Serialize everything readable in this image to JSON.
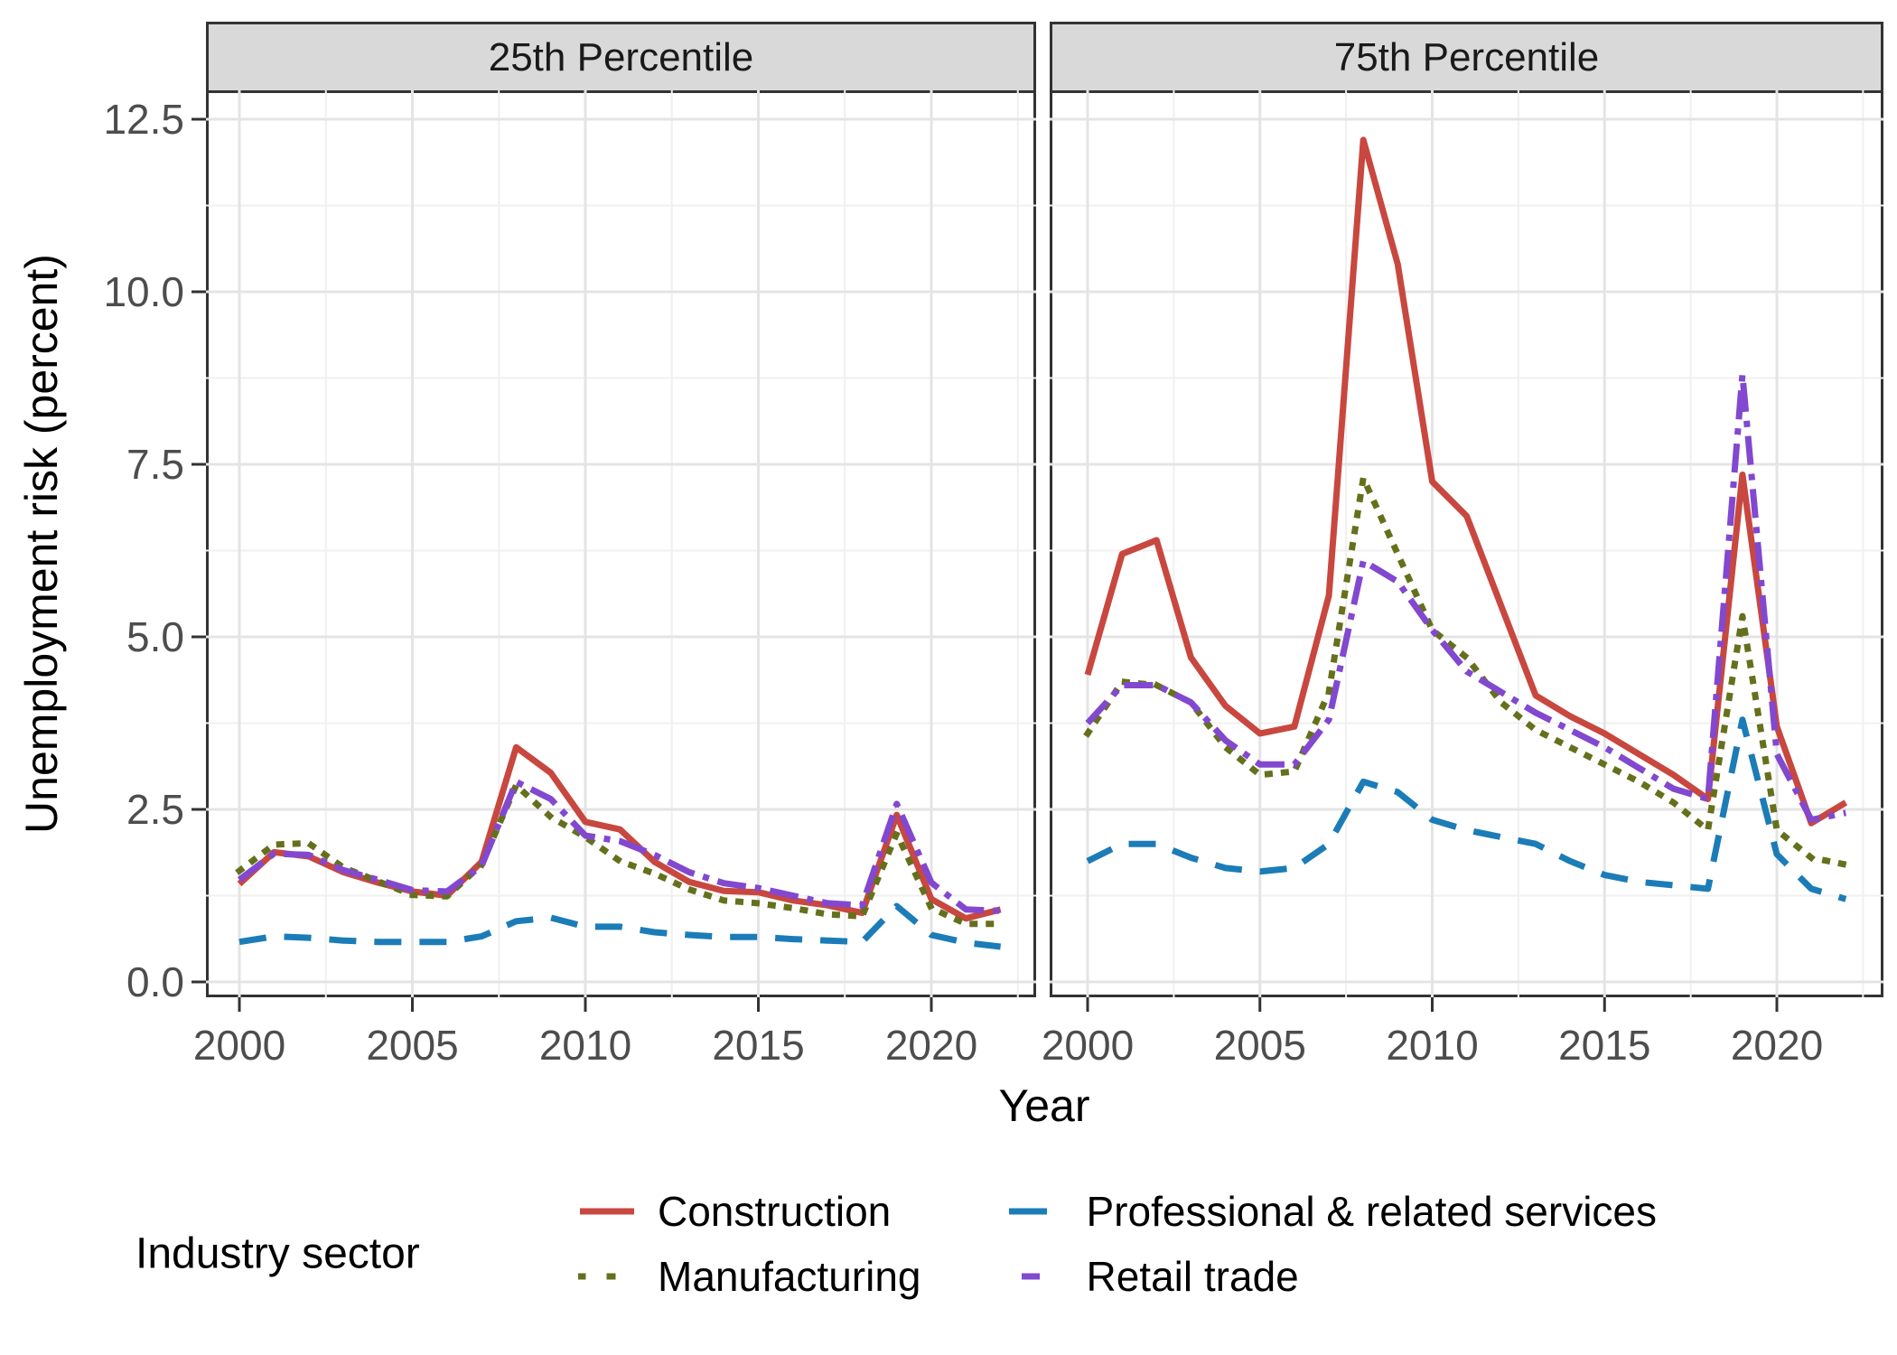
{
  "figure": {
    "y_axis_title": "Unemployment risk (percent)",
    "x_axis_title": "Year"
  },
  "legend": {
    "title": "Industry sector",
    "entries": [
      {
        "label": "Construction",
        "series": "construction"
      },
      {
        "label": "Professional & related services",
        "series": "professional"
      },
      {
        "label": "Manufacturing",
        "series": "manufacturing"
      },
      {
        "label": "Retail trade",
        "series": "retail"
      }
    ]
  },
  "chart_data": {
    "type": "line",
    "title": "",
    "xlabel": "Year",
    "ylabel": "Unemployment risk (percent)",
    "grid": "major+minor",
    "legend_position": "bottom",
    "ylim": [
      0,
      13
    ],
    "x": [
      2000,
      2001,
      2002,
      2003,
      2004,
      2005,
      2006,
      2007,
      2008,
      2009,
      2010,
      2011,
      2012,
      2013,
      2014,
      2015,
      2016,
      2017,
      2018,
      2019,
      2020,
      2021,
      2022
    ],
    "x_ticks": [
      2000,
      2005,
      2010,
      2015,
      2020
    ],
    "x_tick_labels": [
      "2000",
      "2005",
      "2010",
      "2015",
      "2020"
    ],
    "y_ticks": [
      0,
      2.5,
      5,
      7.5,
      10,
      12.5
    ],
    "y_tick_labels": [
      "0.0",
      "2.5",
      "5.0",
      "7.5",
      "10.0",
      "12.5"
    ],
    "series_styles": {
      "construction": {
        "label": "Construction",
        "color": "#C8473F",
        "dash": "solid"
      },
      "manufacturing": {
        "label": "Manufacturing",
        "color": "#66701C",
        "dash": "dotted"
      },
      "professional": {
        "label": "Professional & related services",
        "color": "#1B7CB8",
        "dash": "dashed"
      },
      "retail": {
        "label": "Retail trade",
        "color": "#8248D0",
        "dash": "dashdot"
      }
    },
    "facets": [
      {
        "label": "25th Percentile",
        "series": {
          "construction": [
            1.42,
            1.88,
            1.82,
            1.59,
            1.44,
            1.31,
            1.25,
            1.74,
            3.4,
            3.03,
            2.32,
            2.21,
            1.74,
            1.45,
            1.32,
            1.3,
            1.18,
            1.11,
            1.0,
            2.42,
            1.2,
            0.92,
            1.05
          ],
          "manufacturing": [
            1.61,
            1.99,
            2.01,
            1.66,
            1.46,
            1.26,
            1.24,
            1.7,
            2.85,
            2.39,
            2.1,
            1.75,
            1.57,
            1.34,
            1.18,
            1.14,
            1.07,
            0.98,
            0.95,
            2.15,
            1.07,
            0.84,
            0.84
          ],
          "professional": [
            0.58,
            0.66,
            0.64,
            0.6,
            0.58,
            0.58,
            0.58,
            0.66,
            0.88,
            0.93,
            0.8,
            0.8,
            0.72,
            0.68,
            0.65,
            0.65,
            0.62,
            0.6,
            0.58,
            1.1,
            0.68,
            0.57,
            0.51
          ],
          "retail": [
            1.48,
            1.86,
            1.84,
            1.62,
            1.48,
            1.33,
            1.31,
            1.68,
            2.9,
            2.65,
            2.12,
            2.04,
            1.84,
            1.59,
            1.43,
            1.36,
            1.25,
            1.14,
            1.11,
            2.58,
            1.44,
            1.05,
            1.03
          ]
        }
      },
      {
        "label": "75th Percentile",
        "series": {
          "construction": [
            4.45,
            6.2,
            6.4,
            4.7,
            4.0,
            3.6,
            3.7,
            5.6,
            12.2,
            10.4,
            7.25,
            6.75,
            5.45,
            4.15,
            3.85,
            3.6,
            3.3,
            3.0,
            2.65,
            7.35,
            3.7,
            2.3,
            2.6
          ],
          "manufacturing": [
            3.6,
            4.35,
            4.3,
            4.05,
            3.4,
            3.0,
            3.05,
            4.2,
            7.3,
            6.2,
            5.1,
            4.7,
            4.05,
            3.65,
            3.4,
            3.15,
            2.9,
            2.6,
            2.2,
            5.3,
            2.2,
            1.8,
            1.7
          ],
          "professional": [
            1.75,
            2.0,
            2.0,
            1.8,
            1.65,
            1.6,
            1.65,
            2.0,
            2.9,
            2.75,
            2.35,
            2.2,
            2.1,
            2.0,
            1.75,
            1.55,
            1.45,
            1.4,
            1.35,
            3.8,
            1.85,
            1.35,
            1.2
          ],
          "retail": [
            3.75,
            4.3,
            4.3,
            4.05,
            3.5,
            3.15,
            3.15,
            3.8,
            6.1,
            5.8,
            5.1,
            4.5,
            4.2,
            3.9,
            3.65,
            3.4,
            3.1,
            2.8,
            2.65,
            8.8,
            3.3,
            2.35,
            2.45
          ]
        }
      }
    ]
  }
}
